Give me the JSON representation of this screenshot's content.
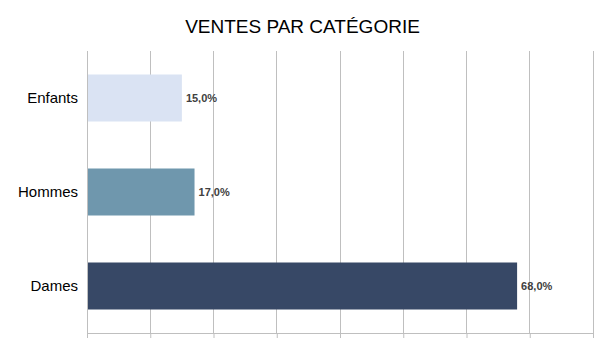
{
  "chart_data": {
    "type": "bar",
    "title": "VENTES PAR CATÉGORIE",
    "orientation": "horizontal",
    "categories": [
      "Enfants",
      "Hommes",
      "Dames"
    ],
    "values": [
      15,
      17,
      68
    ],
    "value_labels": [
      "15,0%",
      "17,0%",
      "68,0%"
    ],
    "colors": [
      "#dae3f3",
      "#6f97ad",
      "#374866"
    ],
    "xlim": [
      0,
      80
    ],
    "xticks": [
      0,
      10,
      20,
      30,
      40,
      50,
      60,
      70,
      80
    ],
    "grid": true,
    "data_labels": true,
    "tick_labels": false
  }
}
